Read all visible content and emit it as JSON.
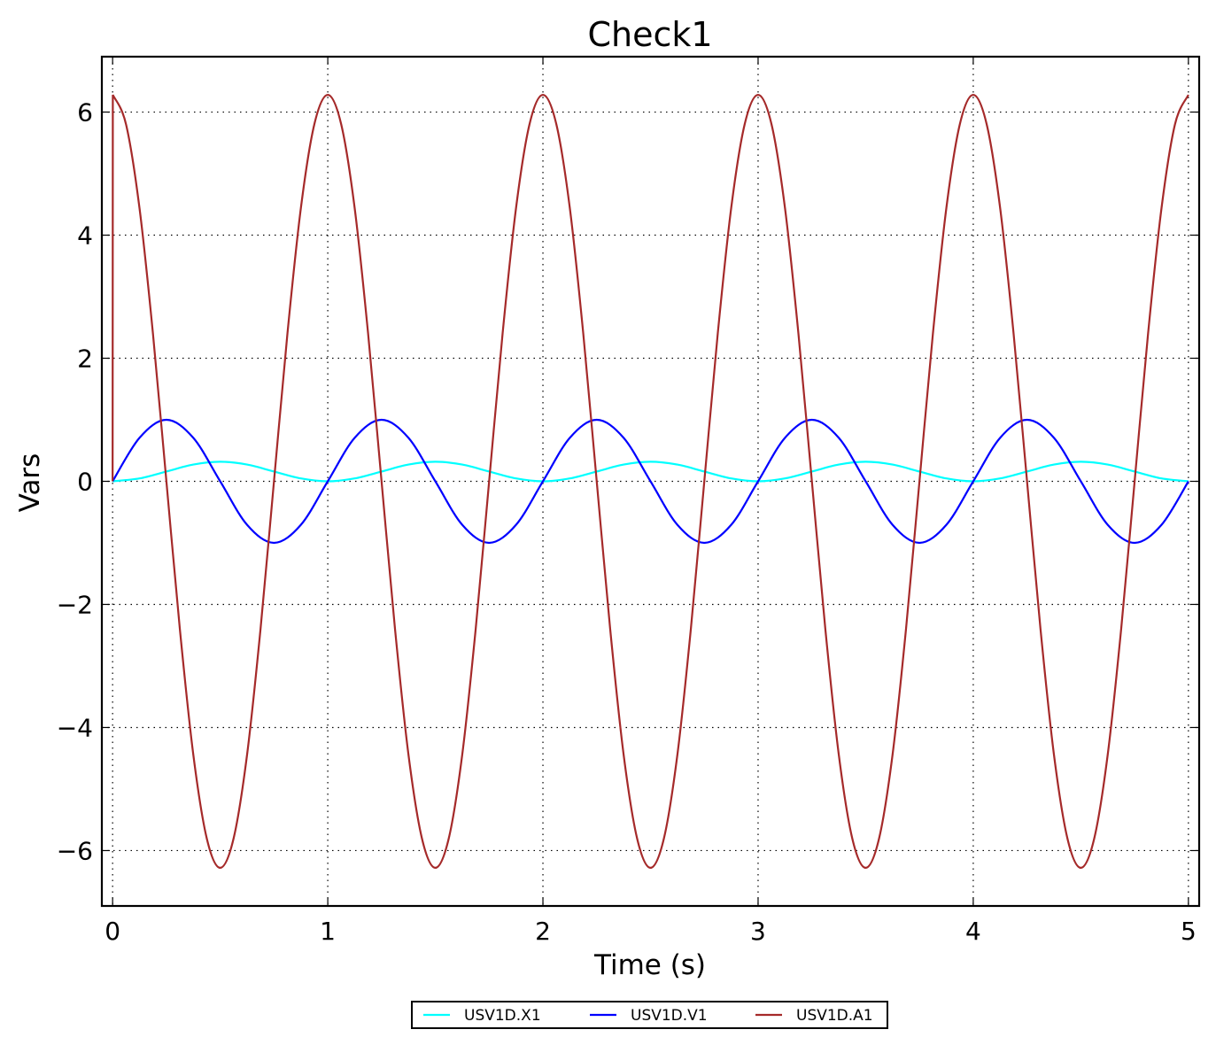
{
  "chart_data": {
    "type": "line",
    "title": "Check1",
    "xlabel": "Time (s)",
    "ylabel": "Vars",
    "xlim": [
      -0.05,
      5.05
    ],
    "ylim": [
      -6.9,
      6.9
    ],
    "x_ticks": [
      0,
      1,
      2,
      3,
      4,
      5
    ],
    "x_tick_labels": [
      "0",
      "1",
      "2",
      "3",
      "4",
      "5"
    ],
    "y_ticks": [
      6,
      4,
      2,
      0,
      -2,
      -4,
      -6
    ],
    "y_tick_labels": [
      "6",
      "4",
      "2",
      "0",
      "−2",
      "−4",
      "−6"
    ],
    "grid": true,
    "legend_position": "bottom-center",
    "series": [
      {
        "name": "USV1D.X1",
        "color": "#00ffff",
        "x": [
          0,
          0.125,
          0.25,
          0.375,
          0.5,
          0.625,
          0.75,
          0.875,
          1.0,
          1.125,
          1.25,
          1.375,
          1.5,
          1.625,
          1.75,
          1.875,
          2.0,
          2.125,
          2.25,
          2.375,
          2.5,
          2.625,
          2.75,
          2.875,
          3.0,
          3.125,
          3.25,
          3.375,
          3.5,
          3.625,
          3.75,
          3.875,
          4.0,
          4.125,
          4.25,
          4.375,
          4.5,
          4.625,
          4.75,
          4.875,
          5.0
        ],
        "values": [
          0,
          0.047,
          0.159,
          0.272,
          0.318,
          0.272,
          0.159,
          0.047,
          0,
          0.047,
          0.159,
          0.272,
          0.318,
          0.272,
          0.159,
          0.047,
          0,
          0.047,
          0.159,
          0.272,
          0.318,
          0.272,
          0.159,
          0.047,
          0,
          0.047,
          0.159,
          0.272,
          0.318,
          0.272,
          0.159,
          0.047,
          0,
          0.047,
          0.159,
          0.272,
          0.318,
          0.272,
          0.159,
          0.047,
          0
        ]
      },
      {
        "name": "USV1D.V1",
        "color": "#0000ff",
        "x": [
          0,
          0.125,
          0.25,
          0.375,
          0.5,
          0.625,
          0.75,
          0.875,
          1.0,
          1.125,
          1.25,
          1.375,
          1.5,
          1.625,
          1.75,
          1.875,
          2.0,
          2.125,
          2.25,
          2.375,
          2.5,
          2.625,
          2.75,
          2.875,
          3.0,
          3.125,
          3.25,
          3.375,
          3.5,
          3.625,
          3.75,
          3.875,
          4.0,
          4.125,
          4.25,
          4.375,
          4.5,
          4.625,
          4.75,
          4.875,
          5.0
        ],
        "values": [
          0,
          0.707,
          1.0,
          0.707,
          0,
          -0.707,
          -1.0,
          -0.707,
          0,
          0.707,
          1.0,
          0.707,
          0,
          -0.707,
          -1.0,
          -0.707,
          0,
          0.707,
          1.0,
          0.707,
          0,
          -0.707,
          -1.0,
          -0.707,
          0,
          0.707,
          1.0,
          0.707,
          0,
          -0.707,
          -1.0,
          -0.707,
          0,
          0.707,
          1.0,
          0.707,
          0,
          -0.707,
          -1.0,
          -0.707,
          0
        ]
      },
      {
        "name": "USV1D.A1",
        "color": "#a52a2a",
        "x": [
          0,
          0.001,
          0.0625,
          0.125,
          0.1875,
          0.25,
          0.3125,
          0.375,
          0.4375,
          0.5,
          0.5625,
          0.625,
          0.6875,
          0.75,
          0.8125,
          0.875,
          0.9375,
          1.0,
          1.0625,
          1.125,
          1.1875,
          1.25,
          1.3125,
          1.375,
          1.4375,
          1.5,
          1.5625,
          1.625,
          1.6875,
          1.75,
          1.8125,
          1.875,
          1.9375,
          2.0,
          2.0625,
          2.125,
          2.1875,
          2.25,
          2.3125,
          2.375,
          2.4375,
          2.5,
          2.5625,
          2.625,
          2.6875,
          2.75,
          2.8125,
          2.875,
          2.9375,
          3.0,
          3.0625,
          3.125,
          3.1875,
          3.25,
          3.3125,
          3.375,
          3.4375,
          3.5,
          3.5625,
          3.625,
          3.6875,
          3.75,
          3.8125,
          3.875,
          3.9375,
          4.0,
          4.0625,
          4.125,
          4.1875,
          4.25,
          4.3125,
          4.375,
          4.4375,
          4.5,
          4.5625,
          4.625,
          4.6875,
          4.75,
          4.8125,
          4.875,
          4.9375,
          5.0
        ],
        "values": [
          0,
          6.28,
          5.8,
          4.44,
          2.4,
          0,
          -2.4,
          -4.44,
          -5.8,
          -6.28,
          -5.8,
          -4.44,
          -2.4,
          0,
          2.4,
          4.44,
          5.8,
          6.28,
          5.8,
          4.44,
          2.4,
          0,
          -2.4,
          -4.44,
          -5.8,
          -6.28,
          -5.8,
          -4.44,
          -2.4,
          0,
          2.4,
          4.44,
          5.8,
          6.28,
          5.8,
          4.44,
          2.4,
          0,
          -2.4,
          -4.44,
          -5.8,
          -6.28,
          -5.8,
          -4.44,
          -2.4,
          0,
          2.4,
          4.44,
          5.8,
          6.28,
          5.8,
          4.44,
          2.4,
          0,
          -2.4,
          -4.44,
          -5.8,
          -6.28,
          -5.8,
          -4.44,
          -2.4,
          0,
          2.4,
          4.44,
          5.8,
          6.28,
          5.8,
          4.44,
          2.4,
          0,
          -2.4,
          -4.44,
          -5.8,
          -6.28,
          -5.8,
          -4.44,
          -2.4,
          0,
          2.4,
          4.44,
          5.8,
          6.28
        ]
      }
    ]
  }
}
